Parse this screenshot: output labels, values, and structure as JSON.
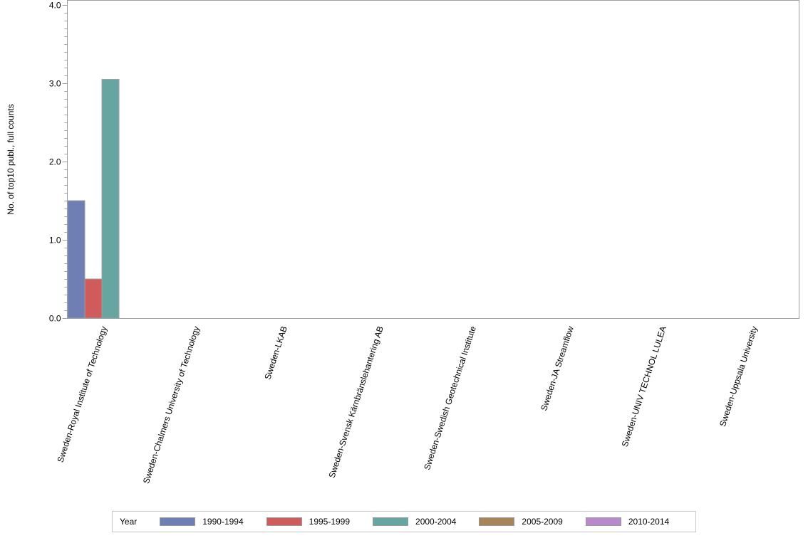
{
  "chart_data": {
    "type": "bar",
    "title": "",
    "xlabel": "",
    "ylabel": "No. of top10 publ., full counts",
    "ylim": [
      0,
      4.0
    ],
    "yticks": [
      "0.0",
      "1.0",
      "2.0",
      "3.0",
      "4.0"
    ],
    "grid": false,
    "legend_position": "bottom",
    "legend_title": "Year",
    "categories": [
      "Sweden-Royal Institute of Technology",
      "Sweden-Chalmers University of Technology",
      "Sweden-LKAB",
      "Sweden-Svensk Kärnbränslehantering AB",
      "Sweden-Swedish Geotechnical Institute",
      "Sweden-JA Streamflow",
      "Sweden-UNIV TECHNOL LULEA",
      "Sweden-Uppsala University"
    ],
    "series": [
      {
        "name": "1990-1994",
        "color": "#6f7eb3",
        "values": [
          1.5,
          0,
          0,
          0,
          0,
          0,
          0,
          0
        ]
      },
      {
        "name": "1995-1999",
        "color": "#d05b5b",
        "values": [
          0.5,
          0,
          0,
          0,
          0,
          0,
          0,
          0
        ]
      },
      {
        "name": "2000-2004",
        "color": "#66a5a0",
        "values": [
          3.05,
          0,
          0,
          0,
          0,
          0,
          0,
          0
        ]
      },
      {
        "name": "2005-2009",
        "color": "#a8845a",
        "values": [
          0,
          0,
          0,
          0,
          0,
          0,
          0,
          0
        ]
      },
      {
        "name": "2010-2014",
        "color": "#b98acb",
        "values": [
          0,
          0,
          0,
          0,
          0,
          0,
          0,
          0
        ]
      }
    ]
  },
  "legend": {
    "title": "Year",
    "items": [
      {
        "label": "1990-1994",
        "color": "#6f7eb3"
      },
      {
        "label": "1995-1999",
        "color": "#d05b5b"
      },
      {
        "label": "2000-2004",
        "color": "#66a5a0"
      },
      {
        "label": "2005-2009",
        "color": "#a8845a"
      },
      {
        "label": "2010-2014",
        "color": "#b98acb"
      }
    ]
  }
}
